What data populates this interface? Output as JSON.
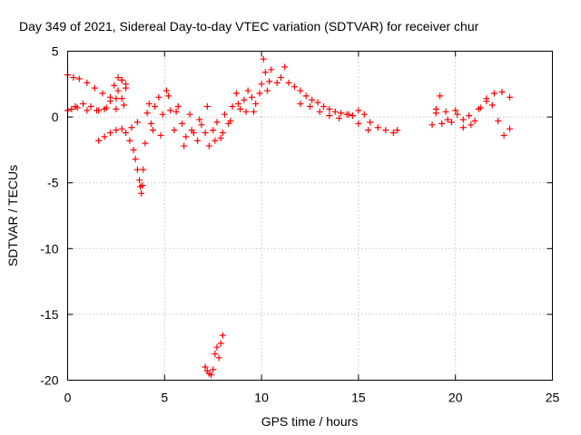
{
  "chart_data": {
    "type": "scatter",
    "title": "Day 349 of 2021, Sidereal Day-to-day VTEC variation (SDTVAR) for receiver chur",
    "xlabel": "GPS time / hours",
    "ylabel": "SDTVAR / TECUs",
    "xlim": [
      0,
      25
    ],
    "ylim": [
      -20,
      5
    ],
    "xticks": [
      0,
      5,
      10,
      15,
      20,
      25
    ],
    "yticks": [
      5,
      0,
      -5,
      -10,
      -15,
      -20
    ],
    "xtick_labels": [
      "0",
      "5",
      "10",
      "15",
      "20",
      "25"
    ],
    "ytick_labels": [
      "5",
      "0",
      "-5",
      "-10",
      "-15",
      "-20"
    ],
    "grid": true,
    "marker": "+",
    "color": "#ff0000",
    "series": [
      {
        "name": "SDTVAR",
        "x": [
          0.0,
          0.3,
          0.6,
          1.0,
          1.4,
          1.8,
          2.2,
          2.5,
          2.8,
          3.0,
          0.2,
          0.5,
          1.0,
          1.5,
          2.0,
          2.5,
          2.8,
          0.0,
          0.4,
          0.8,
          1.2,
          1.6,
          1.9,
          2.2,
          2.4,
          2.6,
          2.8,
          3.0,
          1.6,
          1.9,
          2.2,
          2.5,
          2.8,
          3.0,
          3.2,
          3.4,
          3.5,
          3.6,
          3.7,
          3.75,
          3.8,
          3.85,
          3.9,
          4.0,
          4.1,
          4.2,
          4.3,
          4.5,
          4.7,
          4.9,
          5.1,
          5.3,
          5.5,
          5.7,
          5.9,
          6.1,
          6.3,
          6.5,
          6.7,
          6.9,
          7.1,
          7.3,
          7.5,
          7.7,
          7.9,
          8.1,
          8.3,
          8.5,
          8.7,
          8.9,
          9.1,
          9.3,
          9.5,
          9.7,
          9.9,
          10.0,
          10.1,
          10.2,
          10.3,
          10.5,
          10.8,
          11.0,
          11.2,
          11.4,
          11.7,
          12.0,
          12.3,
          12.6,
          12.9,
          13.2,
          13.5,
          13.8,
          14.1,
          14.4,
          14.7,
          15.0,
          15.3,
          15.6,
          16.0,
          16.4,
          16.8,
          17.0,
          12.0,
          12.5,
          13.0,
          13.5,
          14.0,
          14.5,
          15.0,
          15.5,
          7.1,
          7.2,
          7.3,
          7.4,
          7.5,
          7.6,
          7.7,
          7.8,
          7.9,
          8.0,
          18.8,
          19.0,
          19.2,
          19.5,
          19.8,
          20.1,
          20.4,
          20.7,
          21.0,
          21.3,
          21.6,
          21.9,
          22.2,
          22.5,
          22.8,
          19.0,
          19.3,
          19.6,
          20.0,
          20.4,
          20.8,
          21.2,
          21.6,
          22.0,
          22.4,
          22.8,
          3.6,
          4.4,
          5.2,
          6.0,
          6.8,
          7.6,
          8.4,
          9.2,
          4.8,
          5.6,
          6.4,
          7.2,
          8.0,
          8.8,
          9.6,
          10.4,
          2.6,
          2.9,
          3.3
        ],
        "y": [
          3.2,
          3.0,
          2.9,
          2.6,
          2.2,
          1.8,
          1.2,
          0.6,
          1.4,
          2.2,
          0.6,
          0.7,
          0.5,
          0.5,
          0.7,
          1.4,
          2.8,
          0.5,
          0.8,
          1.0,
          0.8,
          0.5,
          0.6,
          1.5,
          2.4,
          3.0,
          2.8,
          2.5,
          -1.8,
          -1.5,
          -1.2,
          -1.0,
          -0.9,
          -1.2,
          -1.8,
          -2.5,
          -3.2,
          -4.0,
          -4.8,
          -5.3,
          -5.8,
          -5.2,
          -4.0,
          -2.0,
          0.3,
          1.0,
          -0.5,
          0.8,
          1.5,
          0.2,
          2.0,
          0.5,
          -1.0,
          0.8,
          -0.5,
          -1.5,
          0.2,
          -1.2,
          -1.8,
          -0.6,
          -1.2,
          -2.2,
          -1.0,
          -0.4,
          -1.6,
          0.2,
          -0.5,
          0.8,
          1.8,
          0.6,
          1.3,
          2.0,
          1.5,
          1.0,
          1.8,
          2.5,
          4.4,
          3.4,
          2.0,
          3.6,
          2.6,
          3.0,
          3.8,
          2.6,
          2.3,
          2.0,
          1.6,
          1.3,
          1.1,
          0.8,
          0.6,
          0.4,
          0.3,
          0.2,
          0.1,
          0.5,
          0.2,
          -0.4,
          -0.8,
          -1.0,
          -1.2,
          -1.0,
          1.0,
          0.8,
          0.4,
          0.1,
          -0.1,
          0.2,
          -0.5,
          -1.0,
          -19.0,
          -19.3,
          -19.5,
          -19.6,
          -19.2,
          -18.0,
          -17.5,
          -18.3,
          -17.2,
          -16.6,
          -0.6,
          0.6,
          1.6,
          0.4,
          -0.4,
          0.2,
          -0.8,
          0.1,
          -0.3,
          0.7,
          1.4,
          0.9,
          -0.3,
          -1.4,
          -0.9,
          0.3,
          -0.5,
          -0.2,
          0.5,
          -0.2,
          -0.6,
          0.6,
          1.2,
          1.8,
          1.9,
          1.5,
          -0.4,
          -1.0,
          1.6,
          -2.2,
          -0.2,
          -1.8,
          -0.3,
          0.4,
          -1.4,
          0.4,
          -1.0,
          0.8,
          -1.2,
          1.0,
          0.4,
          2.7,
          2.0,
          0.9,
          -0.8
        ]
      }
    ]
  }
}
